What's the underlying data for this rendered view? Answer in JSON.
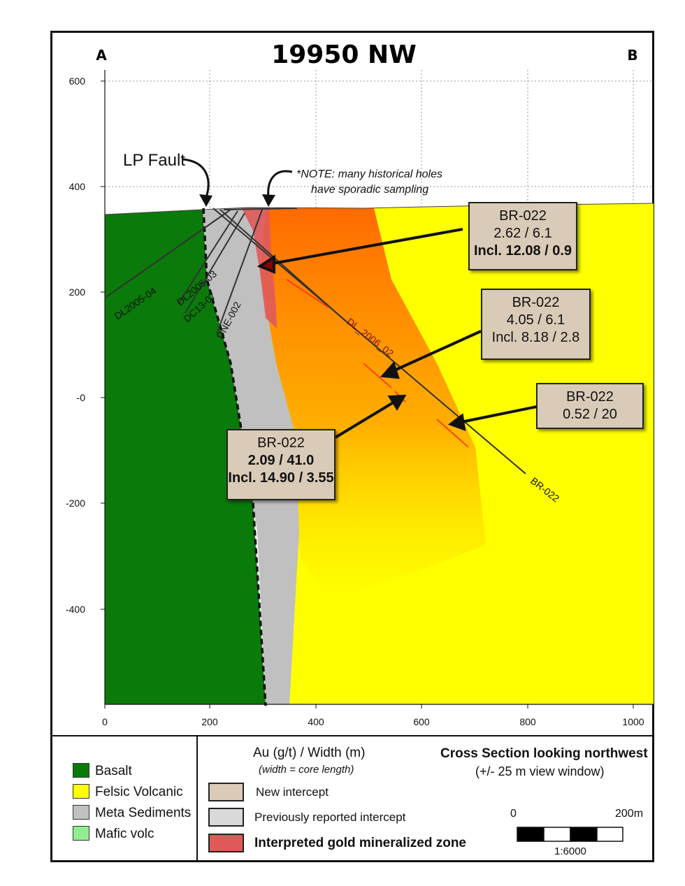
{
  "title": "19950 NW",
  "section_ends": {
    "left": "A",
    "right": "B"
  },
  "axes": {
    "y_ticks": [
      "600",
      "400",
      "200",
      "-0",
      "-200",
      "-400"
    ],
    "x_ticks": [
      "0",
      "200",
      "400",
      "600",
      "800",
      "1000"
    ]
  },
  "annotations": {
    "fault_label": "LP Fault",
    "note_line1": "*NOTE: many historical holes",
    "note_line2": "have sporadic sampling"
  },
  "drillholes": {
    "dl2005_04": "DL2005-04",
    "dl2005_03": "DL2005-03",
    "dc13_07": "DC13-07",
    "dne_002": "DNE-002",
    "dl_2006_02": "DL_2006_02",
    "br_022": "BR-022"
  },
  "callouts": [
    {
      "hole": "BR-022",
      "line1": "2.62 / 6.1",
      "line2": "Incl. 12.08 / 0.9"
    },
    {
      "hole": "BR-022",
      "line1": "4.05 / 6.1",
      "line2": "Incl. 8.18 / 2.8"
    },
    {
      "hole": "BR-022",
      "line1": "0.52 / 20"
    },
    {
      "hole": "BR-022",
      "line1": "2.09 / 41.0",
      "line2": "Incl. 14.90 / 3.55"
    }
  ],
  "legend": {
    "lithology": [
      {
        "label": "Basalt",
        "color": "#0a7a0a"
      },
      {
        "label": "Felsic Volcanic",
        "color": "#ffff00"
      },
      {
        "label": "Meta Sediments",
        "color": "#c0c0c0"
      },
      {
        "label": "Mafic volc",
        "color": "#90ee90"
      }
    ],
    "au_heading": "Au (g/t) / Width (m)",
    "au_subheading": "(width = core length)",
    "symbols": [
      {
        "label": "New intercept",
        "color": "#dacbb8"
      },
      {
        "label": "Previously reported  intercept",
        "color": "#d9d9d9"
      },
      {
        "label": "Interpreted gold mineralized zone",
        "color": "#e05a5a"
      }
    ],
    "view_title": "Cross Section looking northwest",
    "view_window": "(+/- 25 m view window)",
    "scale_start": "0",
    "scale_end": "200m",
    "scale_ratio": "1:6000"
  }
}
